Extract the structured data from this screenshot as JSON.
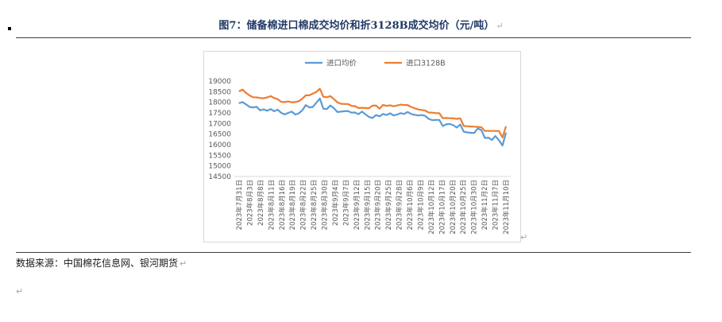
{
  "doc": {
    "title": "图7：储备棉进口棉成交均价和折3128B成交均价（元/吨）",
    "paragraph_mark": "↵",
    "source": "数据来源：中国棉花信息网、银河期货"
  },
  "colors": {
    "title": "#1f3864",
    "import": "#5b9bd5",
    "b3128": "#ed7d31",
    "axis_text": "#595959",
    "grid": "#d9d9d9"
  },
  "chart_data": {
    "type": "line",
    "title": "",
    "xlabel": "",
    "ylabel": "",
    "ylim": [
      14500,
      19000
    ],
    "yticks": [
      14500,
      15000,
      15500,
      16000,
      16500,
      17000,
      17500,
      18000,
      18500,
      19000
    ],
    "grid": false,
    "legend_position": "top",
    "x_tick_labels": [
      "2023年7月31日",
      "2023年8月3日",
      "2023年8月8日",
      "2023年8月11日",
      "2023年8月16日",
      "2023年8月19日",
      "2023年8月22日",
      "2023年8月25日",
      "2023年8月30日",
      "2023年9月4日",
      "2023年9月7日",
      "2023年9月12日",
      "2023年9月15日",
      "2023年9月20日",
      "2023年9月25日",
      "2023年9月28日",
      "2023年10月6日",
      "2023年10月9日",
      "2023年10月12日",
      "2023年10月17日",
      "2023年10月20日",
      "2023年10月25日",
      "2023年10月30日",
      "2023年11月2日",
      "2023年11月7日",
      "2023年11月10日"
    ],
    "series": [
      {
        "name": "进口均价",
        "values": [
          17960,
          18010,
          17900,
          17780,
          17760,
          17790,
          17620,
          17670,
          17600,
          17680,
          17580,
          17650,
          17500,
          17430,
          17500,
          17560,
          17420,
          17480,
          17620,
          17870,
          17760,
          17780,
          17980,
          18180,
          17700,
          17680,
          17850,
          17720,
          17540,
          17560,
          17580,
          17590,
          17510,
          17520,
          17440,
          17560,
          17430,
          17310,
          17260,
          17400,
          17340,
          17450,
          17400,
          17480,
          17380,
          17420,
          17490,
          17450,
          17540,
          17450,
          17410,
          17380,
          17400,
          17360,
          17220,
          17160,
          17170,
          17170,
          16880,
          16960,
          16980,
          16920,
          16810,
          16950,
          16610,
          16580,
          16560,
          16560,
          16770,
          16680,
          16320,
          16330,
          16220,
          16410,
          16210,
          15960,
          16560
        ]
      },
      {
        "name": "进口3128B",
        "values": [
          18520,
          18600,
          18440,
          18320,
          18240,
          18230,
          18200,
          18190,
          18230,
          18290,
          18200,
          18150,
          18020,
          18010,
          18040,
          18000,
          18010,
          18050,
          18170,
          18330,
          18330,
          18410,
          18490,
          18640,
          18260,
          18240,
          18290,
          18150,
          18000,
          17930,
          17920,
          17920,
          17830,
          17820,
          17730,
          17740,
          17730,
          17720,
          17840,
          17850,
          17700,
          17880,
          17830,
          17860,
          17810,
          17850,
          17890,
          17870,
          17870,
          17780,
          17720,
          17660,
          17640,
          17610,
          17520,
          17510,
          17490,
          17490,
          17250,
          17260,
          17250,
          17240,
          17220,
          17240,
          16880,
          16870,
          16860,
          16850,
          16840,
          16820,
          16650,
          16650,
          16650,
          16650,
          16640,
          16340,
          16860
        ]
      }
    ]
  }
}
